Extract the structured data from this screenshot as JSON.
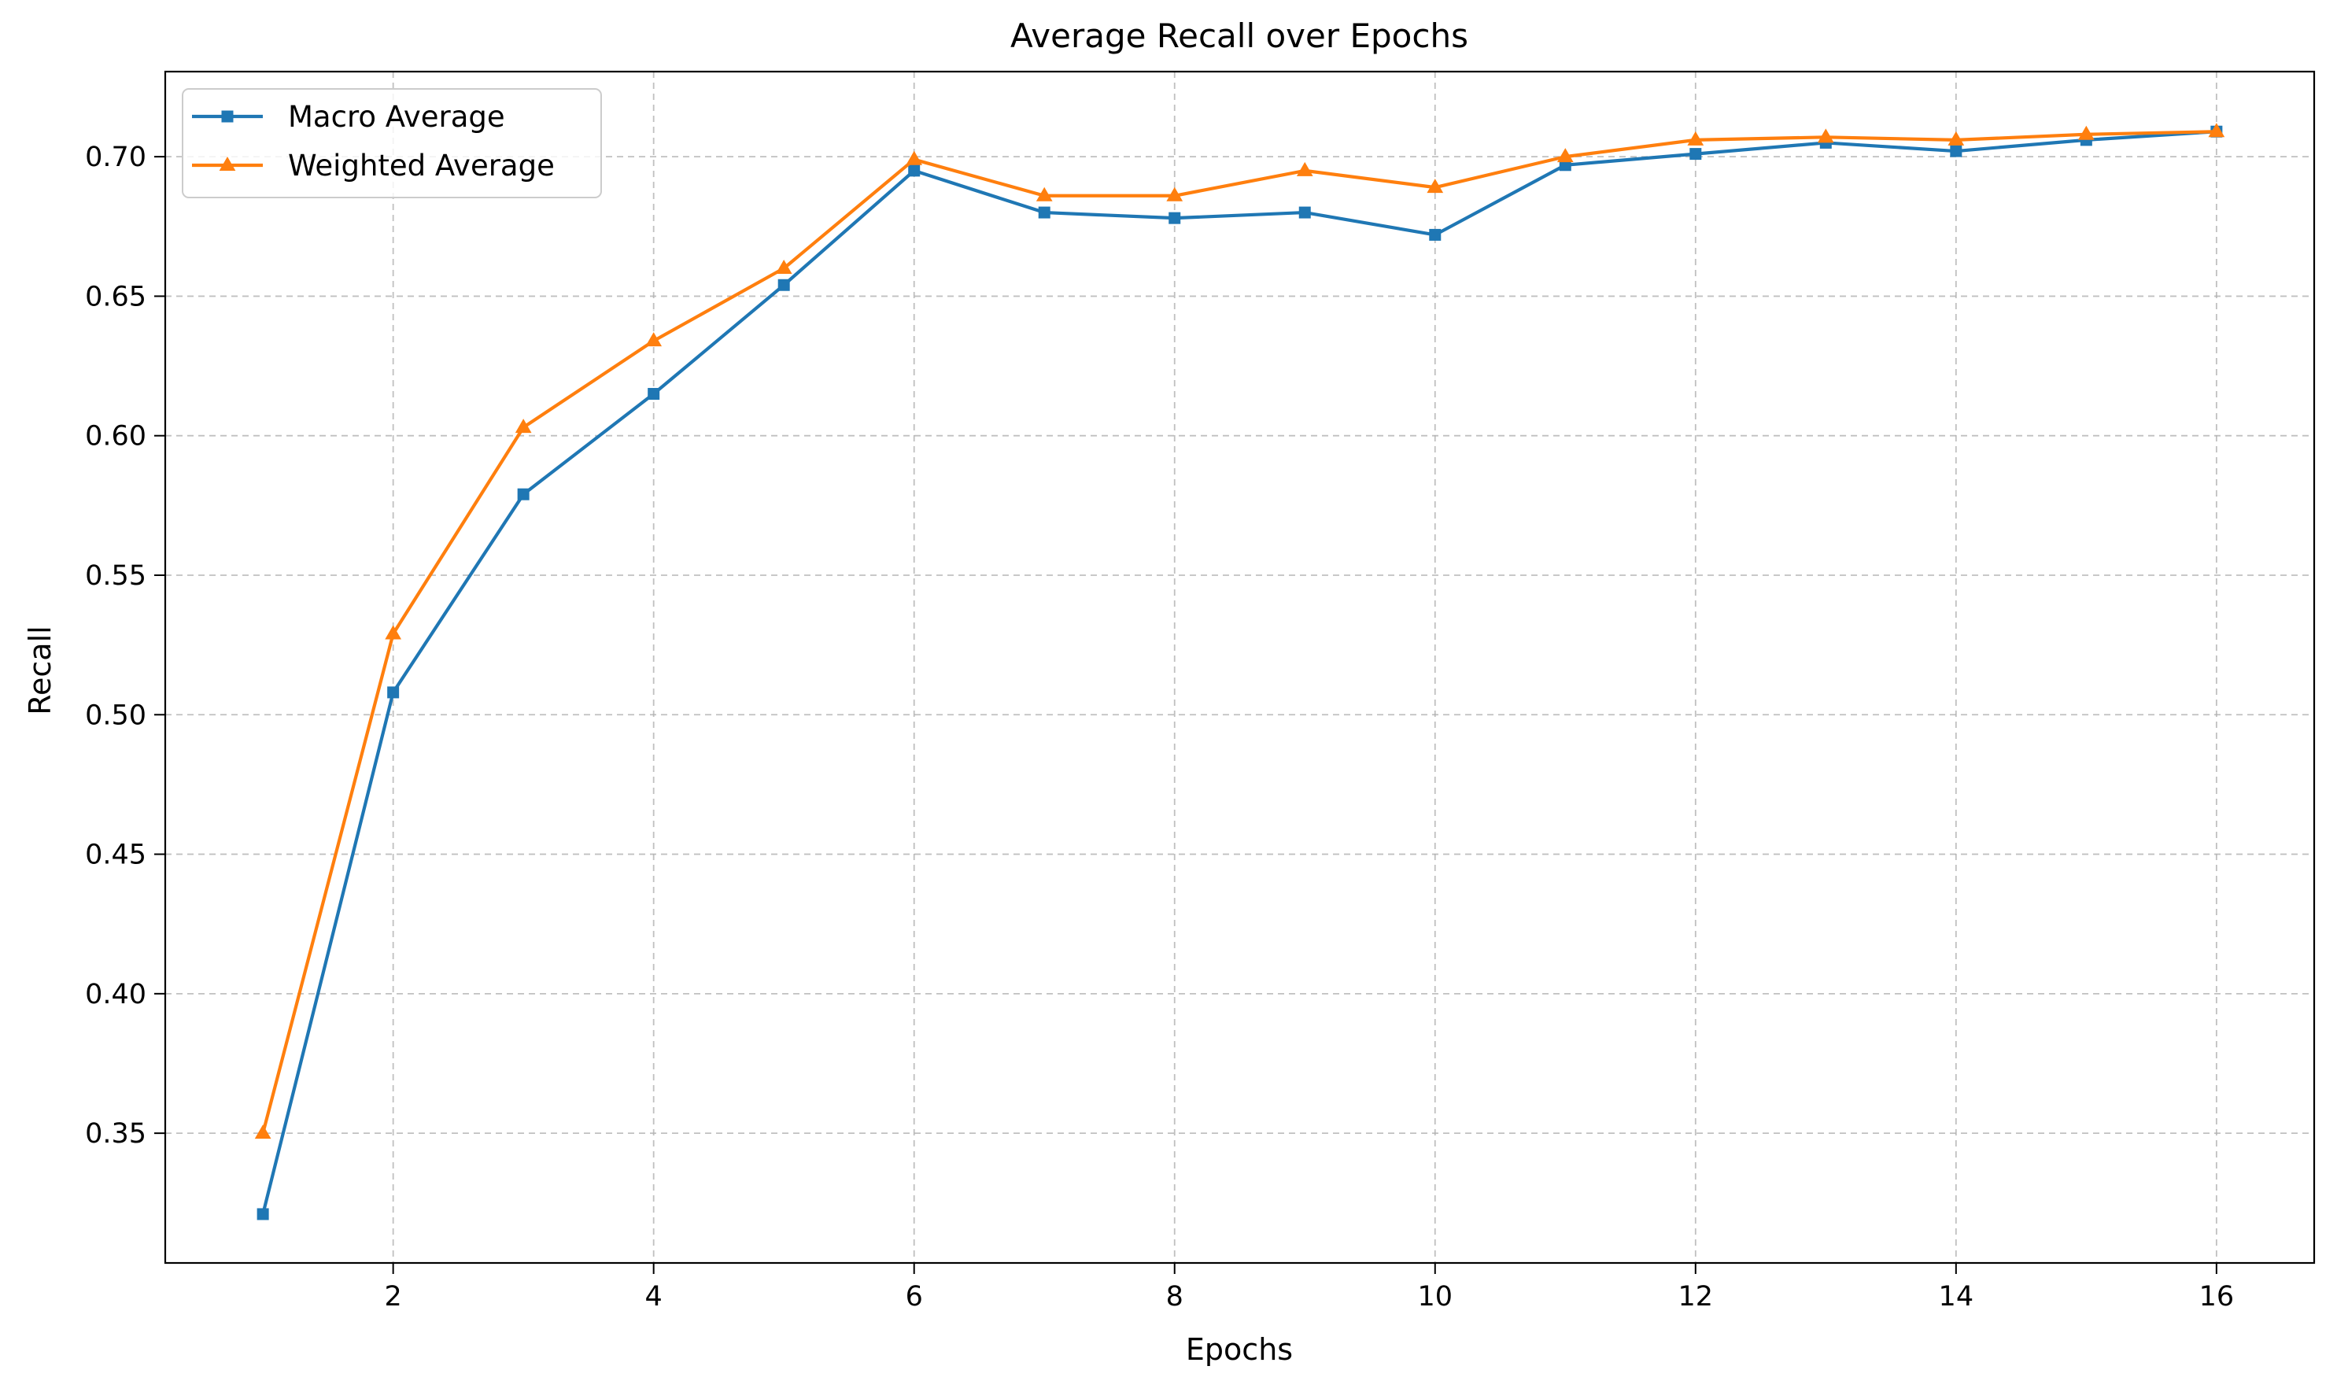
{
  "chart_data": {
    "type": "line",
    "title": "Average Recall over Epochs",
    "xlabel": "Epochs",
    "ylabel": "Recall",
    "xlim": [
      0.25,
      16.75
    ],
    "ylim": [
      0.3035,
      0.7305
    ],
    "xticks": [
      2,
      4,
      6,
      8,
      10,
      12,
      14,
      16
    ],
    "xtick_labels": [
      "2",
      "4",
      "6",
      "8",
      "10",
      "12",
      "14",
      "16"
    ],
    "yticks": [
      0.35,
      0.4,
      0.45,
      0.5,
      0.55,
      0.6,
      0.65,
      0.7
    ],
    "ytick_labels": [
      "0.35",
      "0.40",
      "0.45",
      "0.50",
      "0.55",
      "0.60",
      "0.65",
      "0.70"
    ],
    "grid": true,
    "legend_position": "top-left",
    "x": [
      1,
      2,
      3,
      4,
      5,
      6,
      7,
      8,
      9,
      10,
      11,
      12,
      13,
      14,
      15,
      16
    ],
    "series": [
      {
        "name": "Macro Average",
        "color": "#1f77b4",
        "marker": "square",
        "values": [
          0.321,
          0.508,
          0.579,
          0.615,
          0.654,
          0.695,
          0.68,
          0.678,
          0.68,
          0.672,
          0.697,
          0.701,
          0.705,
          0.702,
          0.706,
          0.709
        ]
      },
      {
        "name": "Weighted Average",
        "color": "#ff7f0e",
        "marker": "triangle",
        "values": [
          0.35,
          0.529,
          0.603,
          0.634,
          0.66,
          0.699,
          0.686,
          0.686,
          0.695,
          0.689,
          0.7,
          0.706,
          0.707,
          0.706,
          0.708,
          0.709
        ]
      }
    ]
  }
}
